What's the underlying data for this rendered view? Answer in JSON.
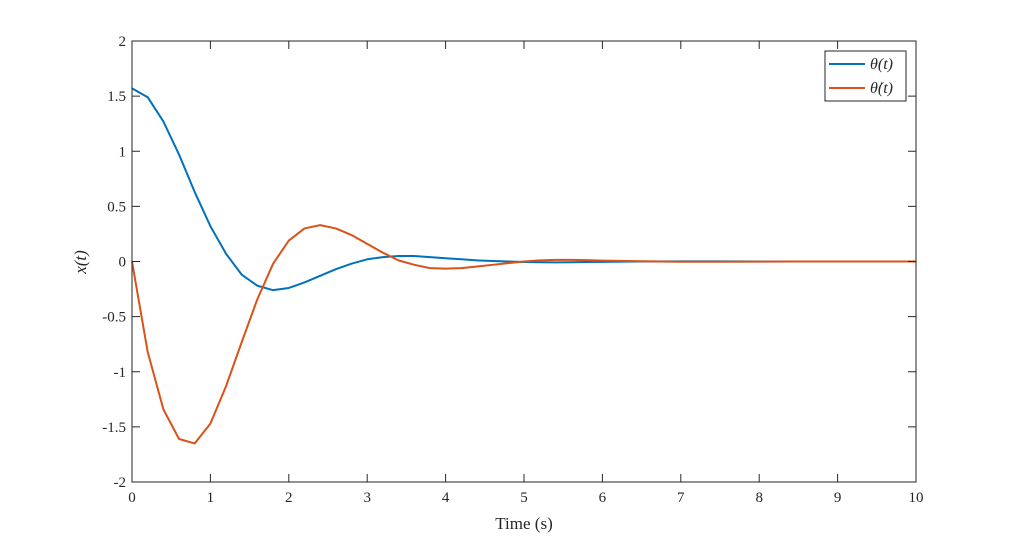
{
  "chart_data": {
    "type": "line",
    "title": "",
    "xlabel": "Time (s)",
    "ylabel": "x(t)",
    "xlim": [
      0,
      10
    ],
    "ylim": [
      -2,
      2
    ],
    "xticks": [
      0,
      1,
      2,
      3,
      4,
      5,
      6,
      7,
      8,
      9,
      10
    ],
    "xtick_labels": [
      "0",
      "1",
      "2",
      "3",
      "4",
      "5",
      "6",
      "7",
      "8",
      "9",
      "10"
    ],
    "yticks": [
      2,
      1.5,
      1,
      0.5,
      0,
      -0.5,
      -1,
      -1.5,
      -2
    ],
    "ytick_labels": [
      "2",
      "1.5",
      "1",
      "0.5",
      "0",
      "-0.5",
      "-1",
      "-1.5",
      "-2"
    ],
    "grid": false,
    "legend_position": "top-right",
    "x": [
      0,
      0.2,
      0.4,
      0.6,
      0.8,
      1.0,
      1.2,
      1.4,
      1.6,
      1.8,
      2.0,
      2.2,
      2.4,
      2.6,
      2.8,
      3.0,
      3.2,
      3.4,
      3.6,
      3.8,
      4.0,
      4.2,
      4.4,
      4.6,
      4.8,
      5.0,
      5.2,
      5.4,
      5.6,
      5.8,
      6.0,
      6.5,
      7.0,
      7.5,
      8.0,
      8.5,
      9.0,
      9.5,
      10.0
    ],
    "series": [
      {
        "name": "θ(t)",
        "color": "#0072BD",
        "values": [
          1.57,
          1.49,
          1.27,
          0.97,
          0.63,
          0.32,
          0.07,
          -0.12,
          -0.22,
          -0.26,
          -0.24,
          -0.19,
          -0.13,
          -0.07,
          -0.02,
          0.02,
          0.04,
          0.05,
          0.05,
          0.04,
          0.03,
          0.02,
          0.01,
          0.005,
          0,
          -0.005,
          -0.007,
          -0.008,
          -0.007,
          -0.005,
          -0.003,
          0,
          0.001,
          0.001,
          0,
          0,
          0,
          0,
          0
        ]
      },
      {
        "name": "θ̇(t)",
        "color": "#D95319",
        "values": [
          0,
          -0.82,
          -1.34,
          -1.61,
          -1.65,
          -1.47,
          -1.13,
          -0.73,
          -0.34,
          -0.02,
          0.19,
          0.3,
          0.33,
          0.3,
          0.24,
          0.16,
          0.08,
          0.01,
          -0.03,
          -0.06,
          -0.065,
          -0.06,
          -0.045,
          -0.03,
          -0.015,
          0,
          0.01,
          0.015,
          0.015,
          0.012,
          0.008,
          0.002,
          -0.002,
          -0.002,
          -0.001,
          0,
          0,
          0,
          0
        ]
      }
    ]
  }
}
